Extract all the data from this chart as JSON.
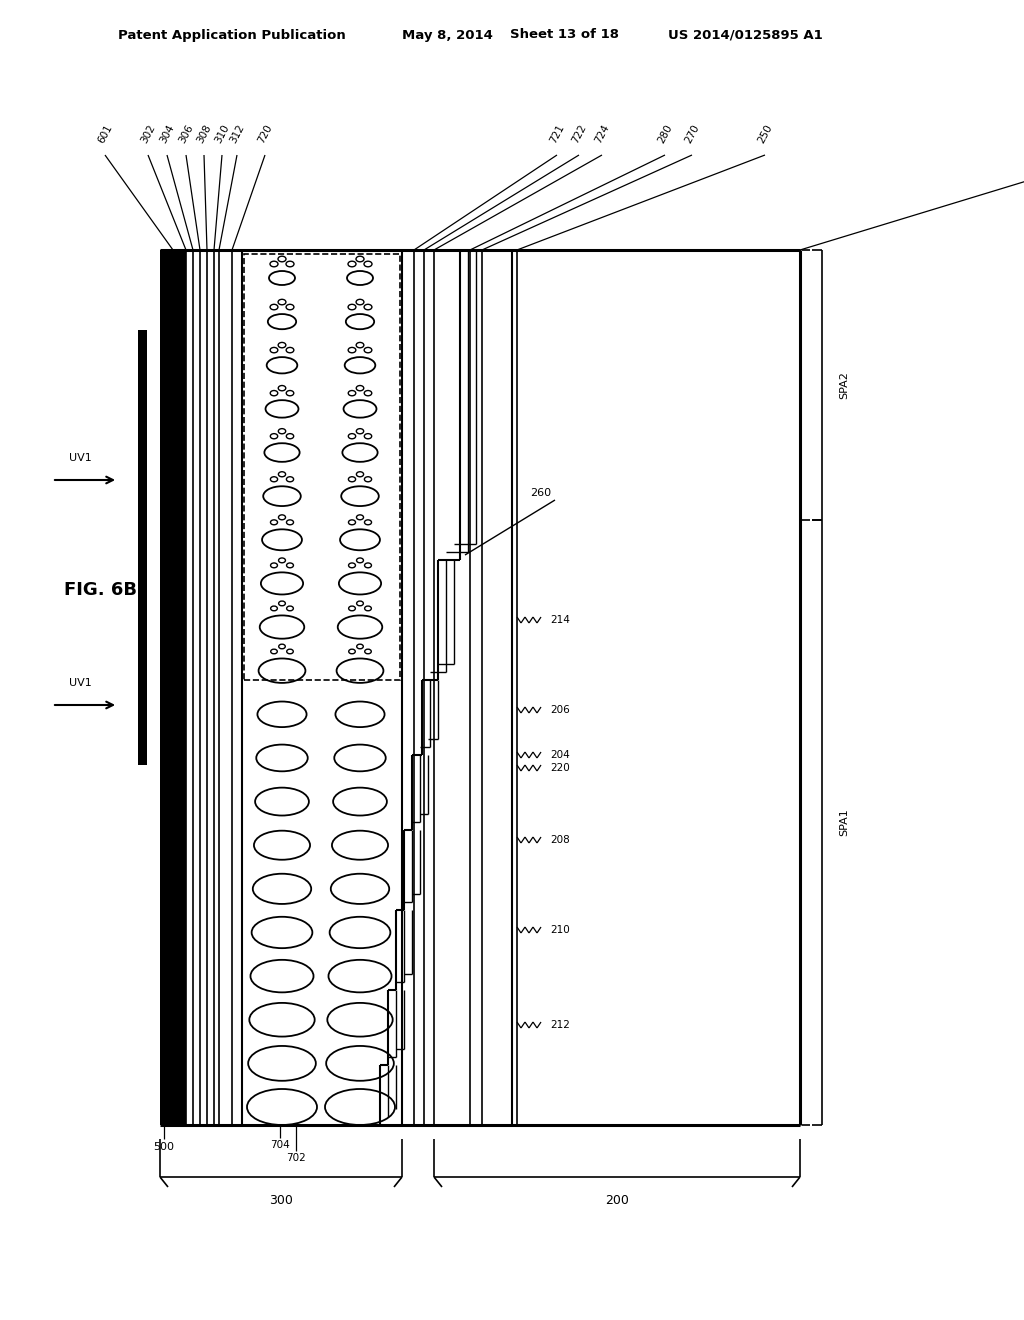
{
  "header_left": "Patent Application Publication",
  "header_mid1": "May 8, 2014",
  "header_mid2": "Sheet 13 of 18",
  "header_right": "US 2014/0125895 A1",
  "fig_label": "FIG. 6B",
  "bg": "#ffffff",
  "fg": "#000000"
}
